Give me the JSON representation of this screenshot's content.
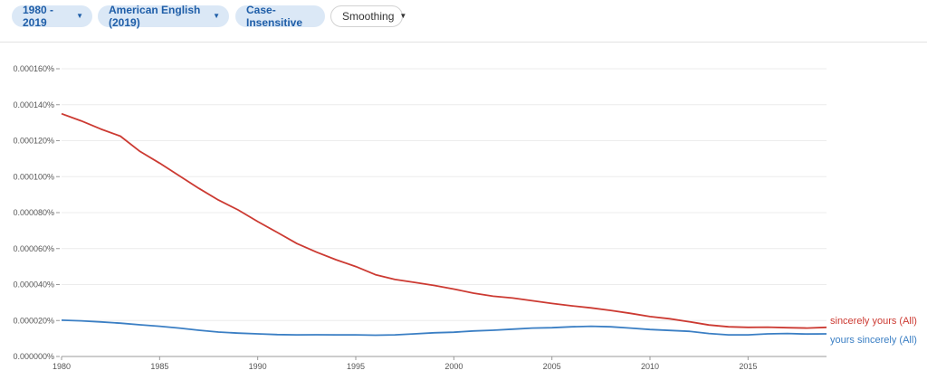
{
  "toolbar": {
    "range_label": "1980 - 2019",
    "corpus_label": "American English (2019)",
    "case_label": "Case-Insensitive",
    "smoothing_label": "Smoothing"
  },
  "colors": {
    "chip_bg": "#dbe8f6",
    "chip_text": "#1f5ea8",
    "series_red": "#cc3a32",
    "series_blue": "#3b7fc4"
  },
  "chart_data": {
    "type": "line",
    "x": [
      1980,
      1981,
      1982,
      1983,
      1984,
      1985,
      1986,
      1987,
      1988,
      1989,
      1990,
      1991,
      1992,
      1993,
      1994,
      1995,
      1996,
      1997,
      1998,
      1999,
      2000,
      2001,
      2002,
      2003,
      2004,
      2005,
      2006,
      2007,
      2008,
      2009,
      2010,
      2011,
      2012,
      2013,
      2014,
      2015,
      2016,
      2017,
      2018,
      2019
    ],
    "xlim": [
      1980,
      2019
    ],
    "ylim": [
      0,
      0.00016
    ],
    "x_ticks": [
      "1980",
      "1985",
      "1990",
      "1995",
      "2000",
      "2005",
      "2010",
      "2015"
    ],
    "y_ticks": [
      "0.000000%",
      "0.000020%",
      "0.000040%",
      "0.000060%",
      "0.000080%",
      "0.000100%",
      "0.000120%",
      "0.000140%",
      "0.000160%"
    ],
    "y_tick_values": [
      0,
      2e-05,
      4e-05,
      6e-05,
      8e-05,
      0.0001,
      0.00012,
      0.00014,
      0.00016
    ],
    "grid": true,
    "series": [
      {
        "name": "sincerely yours (All)",
        "color": "#cc3a32",
        "values": [
          0.000135,
          0.000131,
          0.0001265,
          0.0001225,
          0.000114,
          0.0001075,
          0.0001005,
          9.35e-05,
          8.7e-05,
          8.15e-05,
          7.5e-05,
          6.9e-05,
          6.28e-05,
          5.8e-05,
          5.38e-05,
          5e-05,
          4.55e-05,
          4.28e-05,
          4.12e-05,
          3.95e-05,
          3.75e-05,
          3.52e-05,
          3.35e-05,
          3.25e-05,
          3.1e-05,
          2.95e-05,
          2.82e-05,
          2.7e-05,
          2.56e-05,
          2.4e-05,
          2.22e-05,
          2.1e-05,
          1.93e-05,
          1.75e-05,
          1.65e-05,
          1.62e-05,
          1.63e-05,
          1.6e-05,
          1.58e-05,
          1.62e-05
        ]
      },
      {
        "name": "yours sincerely (All)",
        "color": "#3b7fc4",
        "values": [
          2.02e-05,
          1.98e-05,
          1.92e-05,
          1.85e-05,
          1.76e-05,
          1.68e-05,
          1.58e-05,
          1.46e-05,
          1.36e-05,
          1.3e-05,
          1.26e-05,
          1.22e-05,
          1.2e-05,
          1.21e-05,
          1.2e-05,
          1.2e-05,
          1.18e-05,
          1.2e-05,
          1.26e-05,
          1.32e-05,
          1.35e-05,
          1.42e-05,
          1.46e-05,
          1.52e-05,
          1.58e-05,
          1.6e-05,
          1.65e-05,
          1.68e-05,
          1.65e-05,
          1.58e-05,
          1.5e-05,
          1.45e-05,
          1.4e-05,
          1.28e-05,
          1.2e-05,
          1.2e-05,
          1.26e-05,
          1.28e-05,
          1.25e-05,
          1.26e-05
        ]
      }
    ]
  }
}
